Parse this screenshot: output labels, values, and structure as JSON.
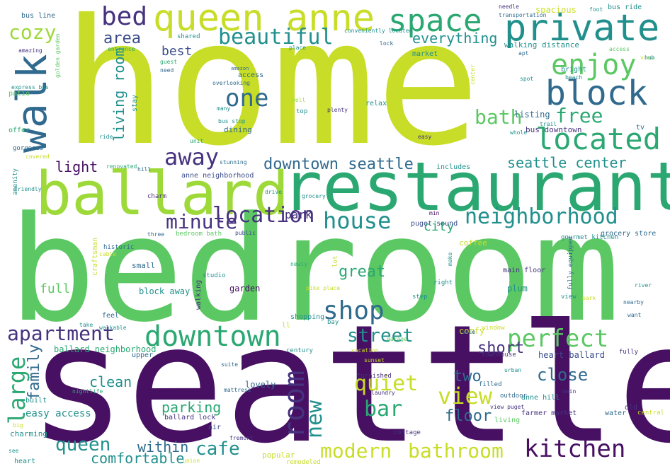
{
  "palette": {
    "yellow": "#c8dd27",
    "lime": "#9ed93a",
    "green": "#5cc863",
    "emerald": "#2ba872",
    "teal": "#21908d",
    "blue": "#306a8e",
    "navy": "#3b4d8a",
    "indigo": "#46327e",
    "purple": "#471063"
  },
  "words": [
    {
      "text": "home",
      "c": "yellow"
    },
    {
      "text": "bedroom",
      "c": "green"
    },
    {
      "text": "seattle",
      "c": "purple"
    },
    {
      "text": "restaurant",
      "c": "emerald"
    },
    {
      "text": "ballard",
      "c": "lime"
    },
    {
      "text": "queen anne",
      "c": "yellow"
    },
    {
      "text": "private",
      "c": "teal"
    },
    {
      "text": "space",
      "c": "emerald"
    },
    {
      "text": "bed",
      "c": "indigo"
    },
    {
      "text": "walk",
      "c": "blue"
    },
    {
      "text": "block",
      "c": "blue"
    },
    {
      "text": "enjoy",
      "c": "green"
    },
    {
      "text": "located",
      "c": "emerald"
    },
    {
      "text": "beautiful",
      "c": "teal"
    },
    {
      "text": "cozy",
      "c": "lime"
    },
    {
      "text": "area",
      "c": "navy"
    },
    {
      "text": "everything",
      "c": "teal"
    },
    {
      "text": "one",
      "c": "blue"
    },
    {
      "text": "best",
      "c": "navy"
    },
    {
      "text": "living room",
      "c": "teal"
    },
    {
      "text": "bath",
      "c": "green"
    },
    {
      "text": "free",
      "c": "emerald"
    },
    {
      "text": "away",
      "c": "indigo"
    },
    {
      "text": "downtown seattle",
      "c": "blue"
    },
    {
      "text": "seattle center",
      "c": "teal"
    },
    {
      "text": "light",
      "c": "purple"
    },
    {
      "text": "neighborhood",
      "c": "teal"
    },
    {
      "text": "house",
      "c": "teal"
    },
    {
      "text": "minute",
      "c": "indigo"
    },
    {
      "text": "location",
      "c": "indigo"
    },
    {
      "text": "city",
      "c": "emerald"
    },
    {
      "text": "park",
      "c": "indigo"
    },
    {
      "text": "shop",
      "c": "blue"
    },
    {
      "text": "great",
      "c": "emerald"
    },
    {
      "text": "full",
      "c": "green"
    },
    {
      "text": "apartment",
      "c": "indigo"
    },
    {
      "text": "downtown",
      "c": "emerald"
    },
    {
      "text": "street",
      "c": "teal"
    },
    {
      "text": "perfect",
      "c": "green"
    },
    {
      "text": "large",
      "c": "emerald"
    },
    {
      "text": "family",
      "c": "blue"
    },
    {
      "text": "room",
      "c": "indigo"
    },
    {
      "text": "new",
      "c": "teal"
    },
    {
      "text": "quiet",
      "c": "yellow"
    },
    {
      "text": "view",
      "c": "yellow"
    },
    {
      "text": "bar",
      "c": "emerald"
    },
    {
      "text": "short",
      "c": "indigo"
    },
    {
      "text": "close",
      "c": "blue"
    },
    {
      "text": "two",
      "c": "blue"
    },
    {
      "text": "clean",
      "c": "teal"
    },
    {
      "text": "parking",
      "c": "emerald"
    },
    {
      "text": "floor",
      "c": "blue"
    },
    {
      "text": "queen",
      "c": "teal"
    },
    {
      "text": "cafe",
      "c": "teal"
    },
    {
      "text": "within",
      "c": "blue"
    },
    {
      "text": "comfortable",
      "c": "teal"
    },
    {
      "text": "modern",
      "c": "yellow"
    },
    {
      "text": "bathroom",
      "c": "yellow"
    },
    {
      "text": "kitchen",
      "c": "purple"
    },
    {
      "text": "easy access",
      "c": "teal"
    },
    {
      "text": "ballard neighborhood",
      "c": "emerald"
    },
    {
      "text": "block away",
      "c": "teal"
    },
    {
      "text": "garden",
      "c": "purple"
    },
    {
      "text": "heart ballard",
      "c": "navy"
    },
    {
      "text": "comfy",
      "c": "yellow"
    },
    {
      "text": "lovely",
      "c": "blue"
    },
    {
      "text": "charming",
      "c": "teal"
    },
    {
      "text": "popular",
      "c": "yellow"
    },
    {
      "text": "coffee",
      "c": "yellow"
    },
    {
      "text": "small",
      "c": "blue"
    },
    {
      "text": "plum",
      "c": "teal"
    },
    {
      "text": "spacious",
      "c": "yellow"
    },
    {
      "text": "walking distance",
      "c": "teal"
    },
    {
      "text": "listing",
      "c": "blue"
    },
    {
      "text": "bus downtown",
      "c": "indigo"
    },
    {
      "text": "bus line",
      "c": "blue"
    },
    {
      "text": "bus ride",
      "c": "teal"
    },
    {
      "text": "dining",
      "c": "blue"
    },
    {
      "text": "anne neighborhood",
      "c": "navy"
    },
    {
      "text": "main floor",
      "c": "indigo"
    },
    {
      "text": "farmer market",
      "c": "indigo"
    },
    {
      "text": "ballard lock",
      "c": "indigo"
    },
    {
      "text": "puget sound",
      "c": "navy"
    },
    {
      "text": "gourmet kitchen",
      "c": "teal"
    },
    {
      "text": "grocery store",
      "c": "blue"
    },
    {
      "text": "bedroom bath",
      "c": "green"
    },
    {
      "text": "anne hill",
      "c": "teal"
    },
    {
      "text": "old",
      "c": "indigo"
    },
    {
      "text": "water",
      "c": "blue"
    },
    {
      "text": "tv",
      "c": "blue"
    },
    {
      "text": "entrance",
      "c": "emerald"
    },
    {
      "text": "shared",
      "c": "teal"
    },
    {
      "text": "access",
      "c": "blue"
    },
    {
      "text": "overlooking",
      "c": "blue"
    },
    {
      "text": "bus stop",
      "c": "teal"
    },
    {
      "text": "offer",
      "c": "emerald"
    },
    {
      "text": "patio",
      "c": "green"
    },
    {
      "text": "amazing",
      "c": "indigo"
    },
    {
      "text": "express bus",
      "c": "teal"
    },
    {
      "text": "golden garden",
      "c": "green"
    },
    {
      "text": "guest",
      "c": "emerald"
    },
    {
      "text": "need",
      "c": "blue"
    },
    {
      "text": "stay",
      "c": "teal"
    },
    {
      "text": "well",
      "c": "lime"
    },
    {
      "text": "top",
      "c": "teal"
    },
    {
      "text": "plenty",
      "c": "indigo"
    },
    {
      "text": "relax",
      "c": "teal"
    },
    {
      "text": "many",
      "c": "teal"
    },
    {
      "text": "conveniently located",
      "c": "teal"
    },
    {
      "text": "lock",
      "c": "blue"
    },
    {
      "text": "market",
      "c": "teal"
    },
    {
      "text": "place",
      "c": "teal"
    },
    {
      "text": "amazon",
      "c": "blue"
    },
    {
      "text": "apt",
      "c": "blue"
    },
    {
      "text": "spot",
      "c": "teal"
    },
    {
      "text": "beach",
      "c": "teal"
    },
    {
      "text": "bright",
      "c": "teal"
    },
    {
      "text": "needle",
      "c": "indigo"
    },
    {
      "text": "transportation",
      "c": "blue"
    },
    {
      "text": "foot",
      "c": "teal"
    },
    {
      "text": "access",
      "c": "green"
    },
    {
      "text": "view",
      "c": "yellow"
    },
    {
      "text": "center",
      "c": "yellow"
    },
    {
      "text": "trail",
      "c": "teal"
    },
    {
      "text": "whole",
      "c": "teal"
    },
    {
      "text": "easy",
      "c": "indigo"
    },
    {
      "text": "ride",
      "c": "teal"
    },
    {
      "text": "unit",
      "c": "emerald"
    },
    {
      "text": "gorgeous",
      "c": "blue"
    },
    {
      "text": "covered",
      "c": "yellow"
    },
    {
      "text": "amenity",
      "c": "teal"
    },
    {
      "text": "renovated",
      "c": "emerald"
    },
    {
      "text": "hill",
      "c": "blue"
    },
    {
      "text": "stunning",
      "c": "blue"
    },
    {
      "text": "includes",
      "c": "teal"
    },
    {
      "text": "friendly",
      "c": "teal"
    },
    {
      "text": "charm",
      "c": "indigo"
    },
    {
      "text": "drive",
      "c": "teal"
    },
    {
      "text": "grocery",
      "c": "teal"
    },
    {
      "text": "min",
      "c": "purple"
    },
    {
      "text": "three",
      "c": "blue"
    },
    {
      "text": "public",
      "c": "navy"
    },
    {
      "text": "historic",
      "c": "blue"
    },
    {
      "text": "cable",
      "c": "yellow"
    },
    {
      "text": "craftsman",
      "c": "yellow"
    },
    {
      "text": "studio",
      "c": "teal"
    },
    {
      "text": "newly",
      "c": "emerald"
    },
    {
      "text": "lot",
      "c": "yellow"
    },
    {
      "text": "make",
      "c": "teal"
    },
    {
      "text": "fully equipped",
      "c": "blue"
    },
    {
      "text": "step",
      "c": "teal"
    },
    {
      "text": "right",
      "c": "teal"
    },
    {
      "text": "pike place",
      "c": "yellow"
    },
    {
      "text": "feel",
      "c": "blue"
    },
    {
      "text": "take",
      "c": "teal"
    },
    {
      "text": "walking",
      "c": "indigo"
    },
    {
      "text": "walkable",
      "c": "teal"
    },
    {
      "text": "shopping",
      "c": "teal"
    },
    {
      "text": "ll",
      "c": "yellow"
    },
    {
      "text": "bay",
      "c": "teal"
    },
    {
      "text": "sale",
      "c": "blue"
    },
    {
      "text": "window",
      "c": "yellow"
    },
    {
      "text": "upper",
      "c": "blue"
    },
    {
      "text": "century",
      "c": "teal"
    },
    {
      "text": "townhouse",
      "c": "indigo"
    },
    {
      "text": "nightlife",
      "c": "emerald"
    },
    {
      "text": "suite",
      "c": "blue"
    },
    {
      "text": "mattress",
      "c": "blue"
    },
    {
      "text": "air",
      "c": "navy"
    },
    {
      "text": "fremont",
      "c": "indigo"
    },
    {
      "text": "built",
      "c": "teal"
    },
    {
      "text": "big",
      "c": "yellow"
    },
    {
      "text": "see",
      "c": "teal"
    },
    {
      "text": "heart",
      "c": "teal"
    },
    {
      "text": "union",
      "c": "yellow"
    },
    {
      "text": "remodeled",
      "c": "yellow"
    },
    {
      "text": "cottage",
      "c": "indigo"
    },
    {
      "text": "laundry",
      "c": "indigo"
    },
    {
      "text": "furnished",
      "c": "indigo"
    },
    {
      "text": "filled",
      "c": "blue"
    },
    {
      "text": "urban",
      "c": "teal"
    },
    {
      "text": "outdoor",
      "c": "blue"
    },
    {
      "text": "view puget",
      "c": "indigo"
    },
    {
      "text": "living",
      "c": "green"
    },
    {
      "text": "main",
      "c": "indigo"
    },
    {
      "text": "central",
      "c": "yellow"
    },
    {
      "text": "fully",
      "c": "indigo"
    },
    {
      "text": "want",
      "c": "blue"
    },
    {
      "text": "nearby",
      "c": "blue"
    },
    {
      "text": "view",
      "c": "teal"
    },
    {
      "text": "park",
      "c": "yellow"
    },
    {
      "text": "hub",
      "c": "teal"
    },
    {
      "text": "river",
      "c": "teal"
    },
    {
      "text": "vacation",
      "c": "yellow"
    },
    {
      "text": "sunset",
      "c": "yellow"
    },
    {
      "text": "garage",
      "c": "green"
    }
  ]
}
